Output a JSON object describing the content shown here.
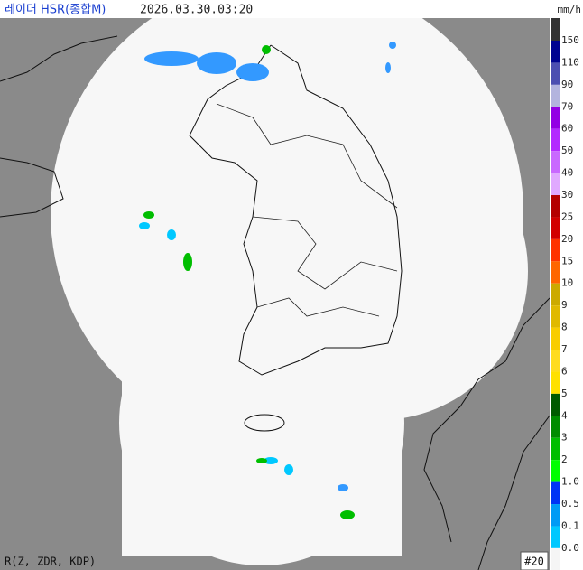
{
  "header": {
    "title": "레이더 HSR(종합M)",
    "time": "2026.03.30.03:20"
  },
  "legend": {
    "unit": "mm/h",
    "labels": [
      "150",
      "110",
      "90",
      "70",
      "60",
      "50",
      "40",
      "30",
      "25",
      "20",
      "15",
      "10",
      "9",
      "8",
      "7",
      "6",
      "5",
      "4",
      "3",
      "2",
      "1.0",
      "0.5",
      "0.1",
      "0.0"
    ],
    "colors": [
      "#333333",
      "#000390",
      "#4c4eb1",
      "#b3b4de",
      "#9300e4",
      "#b329ff",
      "#c969ff",
      "#e0a9ff",
      "#b40000",
      "#d20000",
      "#ff3200",
      "#ff6600",
      "#ccaa00",
      "#e0b900",
      "#f9cd00",
      "#ffdc1f",
      "#ffe100",
      "#005a00",
      "#008c00",
      "#00be00",
      "#00ff00",
      "#0033f5",
      "#009bf5",
      "#00c8ff",
      "#f5f5f5"
    ]
  },
  "footer": {
    "method": "R(Z, ZDR, KDP)",
    "frame": "#20"
  }
}
